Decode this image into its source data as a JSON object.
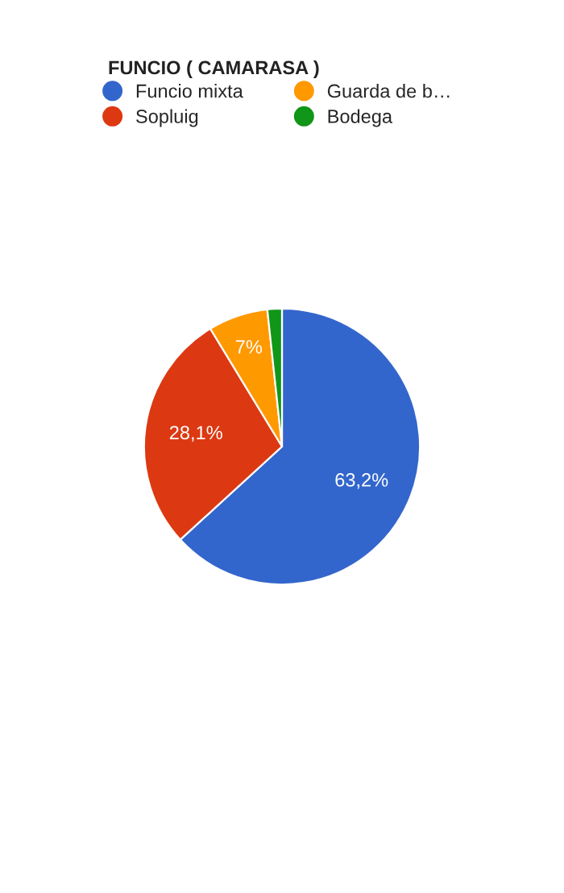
{
  "chart_data": {
    "type": "pie",
    "title": "FUNCIO ( CAMARASA )",
    "categories": [
      "Funcio mixta",
      "Sopluig",
      "Guarda de b…",
      "Bodega"
    ],
    "values": [
      63.2,
      28.1,
      7,
      1.7
    ],
    "colors": [
      "#3366cc",
      "#dc3912",
      "#ff9900",
      "#109618"
    ],
    "value_labels": [
      "63,2%",
      "28,1%",
      "7%",
      null
    ],
    "legend": "top"
  }
}
